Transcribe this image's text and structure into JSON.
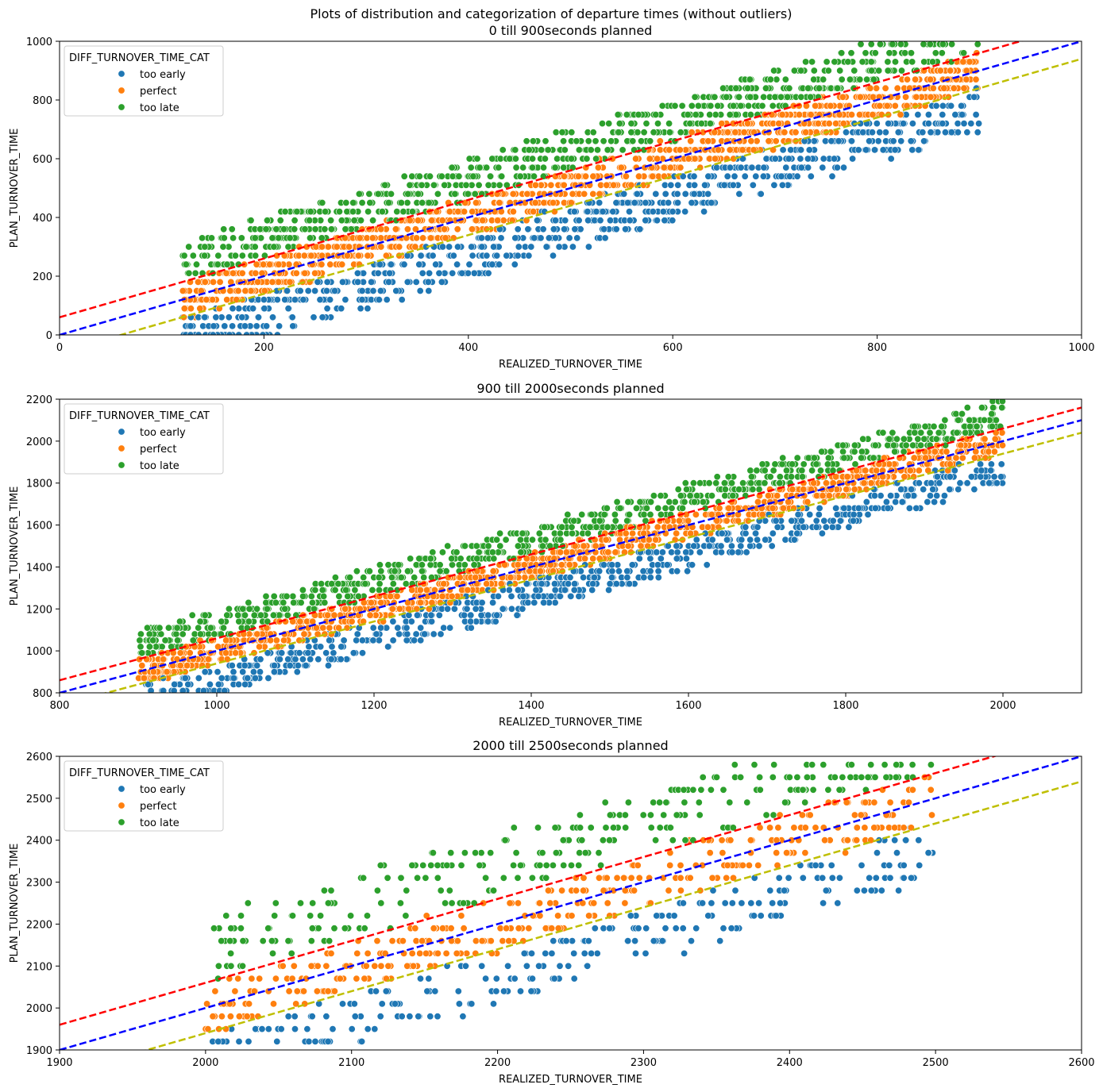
{
  "suptitle": "Plots of distribution and categorization of departure times (without outliers)",
  "colors": {
    "too_early": "#1f77b4",
    "perfect": "#ff7f0e",
    "too_late": "#2ca02c",
    "line_upper": "#ff0000",
    "line_mid": "#0000ff",
    "line_lower": "#bfbf00"
  },
  "chart_data": [
    {
      "type": "scatter",
      "title": "0 till 900seconds planned",
      "xlabel": "REALIZED_TURNOVER_TIME",
      "ylabel": "PLAN_TURNOVER_TIME",
      "xlim": [
        0,
        1000
      ],
      "ylim": [
        0,
        1000
      ],
      "xticks": [
        0,
        200,
        400,
        600,
        800,
        1000
      ],
      "yticks": [
        0,
        200,
        400,
        600,
        800,
        1000
      ],
      "realized_range": [
        120,
        900
      ],
      "band_halfwidth": 60,
      "legend": {
        "title": "DIFF_TURNOVER_TIME_CAT",
        "position": "upper left",
        "entries": [
          "too early",
          "perfect",
          "too late"
        ]
      },
      "reference_lines": [
        {
          "name": "upper",
          "slope": 1,
          "intercept": 60,
          "style": "dashed"
        },
        {
          "name": "mid",
          "slope": 1,
          "intercept": 0,
          "style": "dashed"
        },
        {
          "name": "lower",
          "slope": 1,
          "intercept": -60,
          "style": "dashed"
        }
      ]
    },
    {
      "type": "scatter",
      "title": "900 till 2000seconds planned",
      "xlabel": "REALIZED_TURNOVER_TIME",
      "ylabel": "PLAN_TURNOVER_TIME",
      "xlim": [
        800,
        2100
      ],
      "ylim": [
        800,
        2200
      ],
      "xticks": [
        800,
        1000,
        1200,
        1400,
        1600,
        1800,
        2000
      ],
      "yticks": [
        800,
        1000,
        1200,
        1400,
        1600,
        1800,
        2000,
        2200
      ],
      "realized_range": [
        900,
        2000
      ],
      "band_halfwidth": 60,
      "legend": {
        "title": "DIFF_TURNOVER_TIME_CAT",
        "position": "upper left",
        "entries": [
          "too early",
          "perfect",
          "too late"
        ]
      },
      "reference_lines": [
        {
          "name": "upper",
          "slope": 1,
          "intercept": 60,
          "style": "dashed"
        },
        {
          "name": "mid",
          "slope": 1,
          "intercept": 0,
          "style": "dashed"
        },
        {
          "name": "lower",
          "slope": 1,
          "intercept": -60,
          "style": "dashed"
        }
      ]
    },
    {
      "type": "scatter",
      "title": "2000 till 2500seconds planned",
      "xlabel": "REALIZED_TURNOVER_TIME",
      "ylabel": "PLAN_TURNOVER_TIME",
      "xlim": [
        1900,
        2600
      ],
      "ylim": [
        1900,
        2600
      ],
      "xticks": [
        1900,
        2000,
        2100,
        2200,
        2300,
        2400,
        2500,
        2600
      ],
      "yticks": [
        1900,
        2000,
        2100,
        2200,
        2300,
        2400,
        2500,
        2600
      ],
      "realized_range": [
        2000,
        2500
      ],
      "band_halfwidth": 60,
      "legend": {
        "title": "DIFF_TURNOVER_TIME_CAT",
        "position": "upper left",
        "entries": [
          "too early",
          "perfect",
          "too late"
        ]
      },
      "reference_lines": [
        {
          "name": "upper",
          "slope": 1,
          "intercept": 60,
          "style": "dashed"
        },
        {
          "name": "mid",
          "slope": 1,
          "intercept": 0,
          "style": "dashed"
        },
        {
          "name": "lower",
          "slope": 1,
          "intercept": -60,
          "style": "dashed"
        }
      ]
    }
  ]
}
